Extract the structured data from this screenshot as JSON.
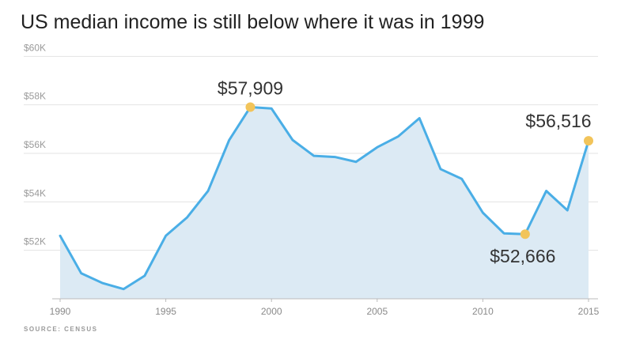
{
  "title": "US median income is still below where it was in 1999",
  "source": "SOURCE: CENSUS",
  "colors": {
    "line": "#4aaee6",
    "area": "#dceaf4",
    "marker": "#f2c45a",
    "grid": "#e3e3e3",
    "axis": "#bbbbbb"
  },
  "chart_data": {
    "type": "area",
    "title": "US median income is still below where it was in 1999",
    "xlabel": "",
    "ylabel": "",
    "xlim": [
      1990,
      2015
    ],
    "ylim": [
      50000,
      60000
    ],
    "x_ticks": [
      1990,
      1995,
      2000,
      2005,
      2010,
      2015
    ],
    "x_tick_labels": [
      "1990",
      "1995",
      "2000",
      "2005",
      "2010",
      "2015"
    ],
    "y_ticks": [
      52000,
      54000,
      56000,
      58000,
      60000
    ],
    "y_tick_labels": [
      "$52K",
      "$54K",
      "$56K",
      "$58K",
      "$60K"
    ],
    "grid": true,
    "series": [
      {
        "x": [
          1990,
          1991,
          1992,
          1993,
          1994,
          1995,
          1996,
          1997,
          1998,
          1999,
          2000,
          2001,
          2002,
          2003,
          2004,
          2005,
          2006,
          2007,
          2008,
          2009,
          2010,
          2011,
          2012,
          2013,
          2014,
          2015
        ],
        "values": [
          52600,
          51050,
          50650,
          50400,
          50950,
          52600,
          53350,
          54450,
          56550,
          57909,
          57850,
          56550,
          55900,
          55850,
          55650,
          56250,
          56700,
          57450,
          55350,
          54950,
          53550,
          52700,
          52666,
          54450,
          53650,
          56516
        ]
      }
    ],
    "annotations": [
      {
        "x": 1999,
        "y": 57909,
        "label": "$57,909"
      },
      {
        "x": 2012,
        "y": 52666,
        "label": "$52,666"
      },
      {
        "x": 2015,
        "y": 56516,
        "label": "$56,516"
      }
    ]
  }
}
